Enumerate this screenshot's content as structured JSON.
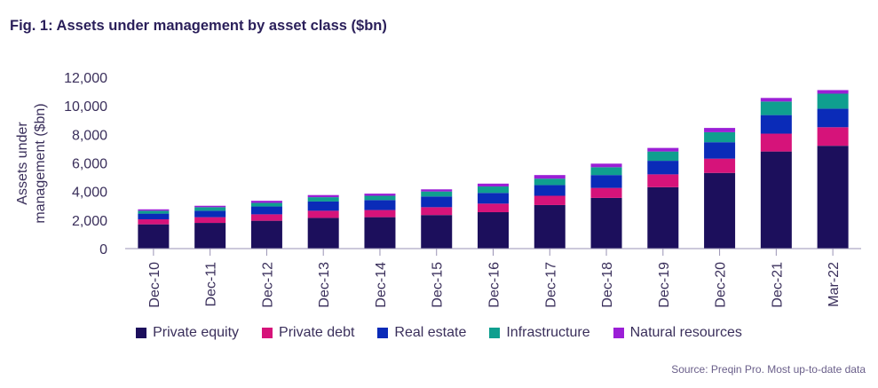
{
  "chart_data": {
    "type": "bar",
    "title": "Fig. 1: Assets under management by asset class ($bn)",
    "ylabel": "Assets under management ($bn)",
    "xlabel": "",
    "ylim": [
      0,
      12000
    ],
    "yticks": [
      "12,000",
      "10,000",
      "8,000",
      "6,000",
      "4,000",
      "2,000",
      "0"
    ],
    "stacked": true,
    "grid": false,
    "legend_position": "bottom",
    "categories": [
      "Dec-10",
      "Dec-11",
      "Dec-12",
      "Dec-13",
      "Dec-14",
      "Dec-15",
      "Dec-16",
      "Dec-17",
      "Dec-18",
      "Dec-19",
      "Dec-20",
      "Dec-21",
      "Mar-22"
    ],
    "series": [
      {
        "name": "Private equity",
        "color": "#1c0f5c",
        "values": [
          1700,
          1800,
          1950,
          2150,
          2200,
          2350,
          2550,
          3050,
          3550,
          4300,
          5300,
          6800,
          7200
        ]
      },
      {
        "name": "Private debt",
        "color": "#d6137a",
        "values": [
          350,
          400,
          450,
          500,
          500,
          550,
          600,
          650,
          700,
          900,
          1000,
          1250,
          1300
        ]
      },
      {
        "name": "Real estate",
        "color": "#0a2bb8",
        "values": [
          400,
          450,
          550,
          650,
          700,
          750,
          750,
          750,
          900,
          950,
          1150,
          1300,
          1300
        ]
      },
      {
        "name": "Infrastructure",
        "color": "#0f9f8f",
        "values": [
          200,
          250,
          250,
          300,
          300,
          350,
          450,
          450,
          550,
          650,
          700,
          950,
          1050
        ]
      },
      {
        "name": "Natural resources",
        "color": "#9b1fd6",
        "values": [
          100,
          100,
          150,
          150,
          150,
          150,
          200,
          250,
          250,
          250,
          300,
          250,
          250
        ]
      }
    ]
  },
  "source": "Source: Preqin Pro. Most up-to-date data"
}
